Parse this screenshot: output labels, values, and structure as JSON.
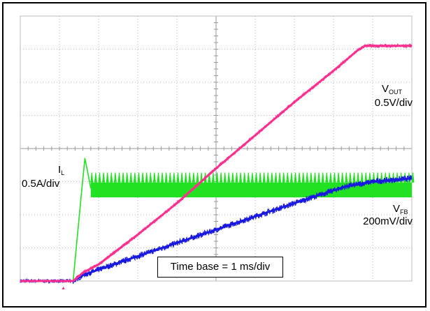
{
  "chart_data": {
    "type": "line",
    "divisions": {
      "x": 10,
      "y": 8
    },
    "x_unit": "ms",
    "time_base": "Time base = 1 ms/div",
    "series": [
      {
        "name": "VOUT",
        "color": "#ff2f8e",
        "scale": "0.5V/div",
        "x": [
          0,
          1.35,
          1.6,
          2.0,
          3.0,
          4.0,
          5.0,
          6.0,
          7.0,
          8.0,
          8.6,
          8.8,
          10.0
        ],
        "y": [
          0,
          0,
          0.25,
          0.5,
          1.4,
          2.35,
          3.4,
          4.4,
          5.4,
          6.35,
          6.95,
          7.1,
          7.1
        ],
        "noise": 0.05
      },
      {
        "name": "IL",
        "color": "#22e022",
        "scale": "0.5A/div",
        "x": [
          0,
          1.35,
          1.55,
          1.65,
          1.72,
          1.8,
          2.0,
          4.0,
          6.0,
          8.0,
          10.0
        ],
        "y": [
          0,
          0,
          2.5,
          3.7,
          3.3,
          2.8,
          2.75,
          2.75,
          2.75,
          2.75,
          2.75
        ],
        "band": 0.45,
        "band_start": 1.8,
        "spikes": 0.3
      },
      {
        "name": "VFB",
        "color": "#1818e0",
        "scale": "200mV/div",
        "x": [
          0,
          1.35,
          1.6,
          3.0,
          5.0,
          7.0,
          8.3,
          9.0,
          10.0
        ],
        "y": [
          0,
          0,
          0.18,
          0.75,
          1.55,
          2.35,
          2.85,
          3.0,
          3.1
        ],
        "noise": 0.09
      }
    ]
  },
  "labels": {
    "vout_main": "V",
    "vout_sub": "OUT",
    "vout_scale": "0.5V/div",
    "il_main": "I",
    "il_sub": "L",
    "il_scale": "0.5A/div",
    "vfb_main": "V",
    "vfb_sub": "FB",
    "vfb_scale": "200mV/div",
    "time_base": "Time base = 1 ms/div"
  }
}
